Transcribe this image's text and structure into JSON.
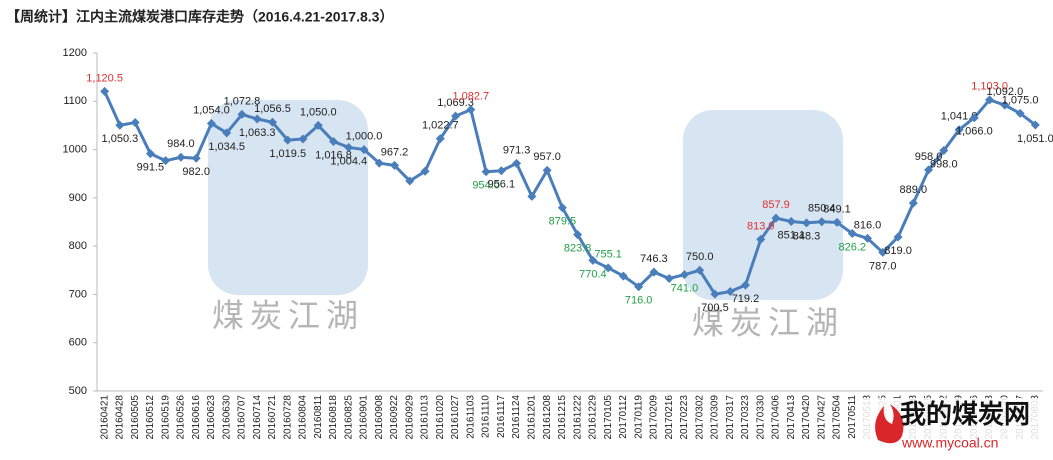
{
  "chart_data": {
    "type": "line",
    "title": "【周统计】江内主流煤炭港口库存走势（2016.4.21-2017.8.3）",
    "watermark": "煤炭江湖",
    "logo": {
      "name": "我的煤炭网",
      "url": "www.mycoal.cn"
    },
    "categories": [
      "20160421",
      "20160428",
      "20160505",
      "20160512",
      "20160519",
      "20160526",
      "20160616",
      "20160623",
      "20160630",
      "20160707",
      "20160714",
      "20160721",
      "20160728",
      "20160804",
      "20160811",
      "20160818",
      "20160825",
      "20160901",
      "20160908",
      "20160922",
      "20160929",
      "20161013",
      "20161020",
      "20161027",
      "20161103",
      "20161110",
      "20161117",
      "20161124",
      "20161201",
      "20161208",
      "20161215",
      "20161222",
      "20161229",
      "20170105",
      "20170112",
      "20170119",
      "20170209",
      "20170216",
      "20170223",
      "20170302",
      "20170309",
      "20170317",
      "20170323",
      "20170330",
      "20170406",
      "20170413",
      "20170420",
      "20170427",
      "20170504",
      "20170511",
      "20170518",
      "20170525",
      "20170601",
      "20170608",
      "20170615",
      "20170622",
      "20170629",
      "20170706",
      "20170713",
      "20170720",
      "20170727",
      "20170803"
    ],
    "series": [
      {
        "color": "#4a7ebb",
        "values": [
          1120.5,
          1050.3,
          1056,
          991.5,
          977,
          984,
          982,
          1054,
          1034.5,
          1072.8,
          1063.3,
          1056.5,
          1019.5,
          1022,
          1050,
          1016.8,
          1004.4,
          1000,
          972,
          967.2,
          935,
          955,
          1022.7,
          1069.3,
          1082.7,
          954,
          956.1,
          971.3,
          903,
          957,
          879.5,
          823.8,
          770.4,
          755.1,
          738,
          716,
          746.3,
          733,
          741,
          750,
          700.5,
          706,
          719.2,
          813.9,
          857.9,
          851.1,
          848.3,
          850.4,
          849.1,
          826.2,
          816,
          787,
          819,
          889,
          958,
          998,
          1041,
          1066,
          1103,
          1092,
          1075,
          1051
        ],
        "value_labels": [
          "1,120.5",
          "1,050.3",
          null,
          "991.5",
          null,
          "984.0",
          "982.0",
          "1,054.0",
          "1,034.5",
          "1,072.8",
          "1,063.3",
          "1,056.5",
          "1,019.5",
          null,
          "1,050.0",
          "1,016.8",
          "1,004.4",
          "1,000.0",
          null,
          "967.2",
          null,
          null,
          "1,022.7",
          "1,069.3",
          "1,082.7",
          "954.0",
          "956.1",
          "971.3",
          null,
          "957.0",
          "879.5",
          "823.8",
          "770.4",
          "755.1",
          null,
          "716.0",
          "746.3",
          null,
          "741.0",
          "750.0",
          "700.5",
          null,
          "719.2",
          "813.9",
          "857.9",
          "851.1",
          "848.3",
          "850.4",
          "849.1",
          "826.2",
          "816.0",
          "787.0",
          "819.0",
          "889.0",
          "958.0",
          "998.0",
          "1,041.0",
          "1,066.0",
          "1,103.0",
          "1,092.0",
          "1,075.0",
          "1,051.0"
        ],
        "value_label_colors": [
          "#e03030",
          "#222",
          null,
          "#222",
          null,
          "#222",
          "#222",
          "#222",
          "#222",
          "#222",
          "#222",
          "#222",
          "#222",
          null,
          "#222",
          "#222",
          "#222",
          "#222",
          null,
          "#222",
          null,
          null,
          "#222",
          "#222",
          "#e03030",
          "#22a045",
          "#222",
          "#222",
          null,
          "#222",
          "#22a045",
          "#22a045",
          "#22a045",
          "#22a045",
          null,
          "#22a045",
          "#222",
          null,
          "#22a045",
          "#222",
          "#222",
          null,
          "#222",
          "#e03030",
          "#e03030",
          "#222",
          "#222",
          "#222",
          "#222",
          "#22a045",
          "#222",
          "#222",
          "#222",
          "#222",
          "#222",
          "#222",
          "#222",
          "#222",
          "#e03030",
          "#222",
          "#222",
          "#222"
        ]
      }
    ],
    "ylim": [
      500,
      1200
    ],
    "yticks": [
      500,
      600,
      700,
      800,
      900,
      1000,
      1100,
      1200
    ],
    "grid": false
  }
}
